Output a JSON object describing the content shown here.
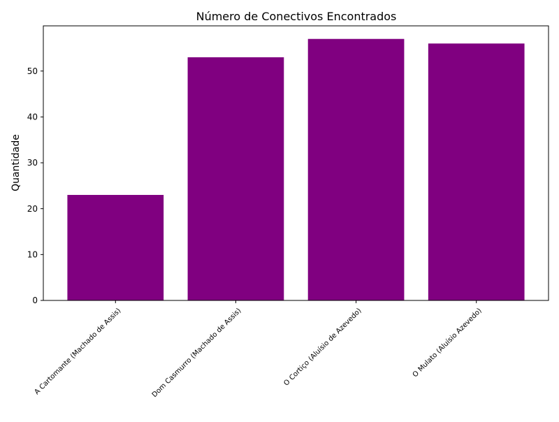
{
  "chart_data": {
    "type": "bar",
    "title": "Número de Conectivos Encontrados",
    "xlabel": "",
    "ylabel": "Quantidade",
    "categories": [
      "A Cartomante (Machado de Assis)",
      "Dom Casmurro (Machado de Assis)",
      "O Cortiço (Aluísio de Azevedo)",
      "O Mulato (Aluísio Azevedo)"
    ],
    "values": [
      23,
      53,
      57,
      56
    ],
    "ylim": [
      0,
      59.85
    ],
    "yticks": [
      0,
      10,
      20,
      30,
      40,
      50
    ],
    "grid": false,
    "legend": "none",
    "bar_color": "#800080",
    "axis_color": "#000000"
  }
}
